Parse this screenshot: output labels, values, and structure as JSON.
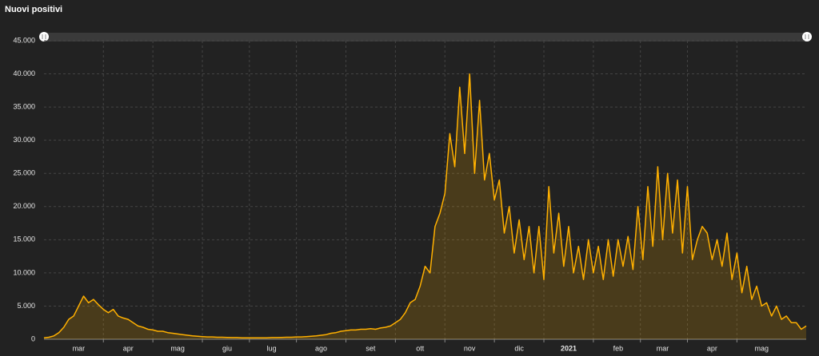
{
  "chart_data": {
    "type": "area",
    "title": "Nuovi positivi",
    "color": "#ffb000",
    "grid": true,
    "categories": [
      null,
      null,
      null,
      null,
      null,
      null,
      null,
      "mar",
      null,
      null,
      null,
      null,
      null,
      null,
      null,
      null,
      null,
      "apr",
      null,
      null,
      null,
      null,
      null,
      null,
      null,
      null,
      null,
      "mag",
      null,
      null,
      null,
      null,
      null,
      null,
      null,
      null,
      null,
      "giu",
      null,
      null,
      null,
      null,
      null,
      null,
      null,
      null,
      "lug",
      null,
      null,
      null,
      null,
      null,
      null,
      null,
      null,
      null,
      "ago",
      null,
      null,
      null,
      null,
      null,
      null,
      null,
      null,
      null,
      "set",
      null,
      null,
      null,
      null,
      null,
      null,
      null,
      null,
      null,
      "ott",
      null,
      null,
      null,
      null,
      null,
      null,
      null,
      null,
      null,
      "nov",
      null,
      null,
      null,
      null,
      null,
      null,
      null,
      null,
      null,
      "dic",
      null,
      null,
      null,
      null,
      null,
      null,
      null,
      null,
      null,
      "2021",
      null,
      null,
      null,
      null,
      null,
      null,
      null,
      null,
      null,
      "feb",
      null,
      null,
      null,
      null,
      null,
      null,
      null,
      null,
      "mar",
      null,
      null,
      null,
      null,
      null,
      null,
      null,
      null,
      null,
      "apr",
      null,
      null,
      null,
      null,
      null,
      null,
      null,
      null,
      null,
      "mag",
      null,
      null,
      null,
      null,
      null,
      null,
      null,
      null,
      null
    ],
    "values": [
      200,
      300,
      500,
      1000,
      1800,
      3000,
      3500,
      5000,
      6500,
      5500,
      6000,
      5200,
      4500,
      4000,
      4500,
      3500,
      3200,
      3000,
      2500,
      2000,
      1800,
      1500,
      1400,
      1200,
      1200,
      1000,
      900,
      800,
      700,
      600,
      500,
      450,
      400,
      350,
      350,
      300,
      300,
      280,
      250,
      250,
      220,
      200,
      200,
      200,
      220,
      220,
      250,
      250,
      280,
      300,
      300,
      350,
      350,
      400,
      450,
      500,
      600,
      700,
      900,
      1000,
      1200,
      1300,
      1400,
      1400,
      1500,
      1500,
      1600,
      1500,
      1700,
      1800,
      2000,
      2500,
      3000,
      4000,
      5500,
      6000,
      8000,
      11000,
      10000,
      17000,
      19000,
      22000,
      31000,
      26000,
      38000,
      28000,
      40000,
      25000,
      36000,
      24000,
      28000,
      21000,
      24000,
      16000,
      20000,
      13000,
      18000,
      12000,
      17000,
      10000,
      17000,
      9000,
      23000,
      13000,
      19000,
      11000,
      17000,
      10000,
      14000,
      9000,
      15000,
      10000,
      14000,
      9000,
      15000,
      9500,
      15000,
      11000,
      15500,
      10500,
      20000,
      12000,
      23000,
      14000,
      26000,
      15000,
      25000,
      16000,
      24000,
      13000,
      23000,
      12000,
      15000,
      17000,
      16000,
      12000,
      15000,
      11000,
      16000,
      9000,
      13000,
      7000,
      11000,
      6000,
      8000,
      5000,
      5500,
      3500,
      5000,
      3000,
      3500,
      2500,
      2500,
      1500,
      2000
    ],
    "ylim": [
      0,
      45000
    ],
    "yticks": [
      0,
      {
        "value": 5000,
        "label": "5.000"
      },
      {
        "value": 10000,
        "label": "10.000"
      },
      {
        "value": 15000,
        "label": "15.000"
      },
      {
        "value": 20000,
        "label": "20.000"
      },
      {
        "value": 25000,
        "label": "25.000"
      },
      {
        "value": 30000,
        "label": "30.000"
      },
      {
        "value": 35000,
        "label": "35.000"
      },
      {
        "value": 40000,
        "label": "40.000"
      },
      {
        "value": 45000,
        "label": "45.000"
      }
    ]
  }
}
